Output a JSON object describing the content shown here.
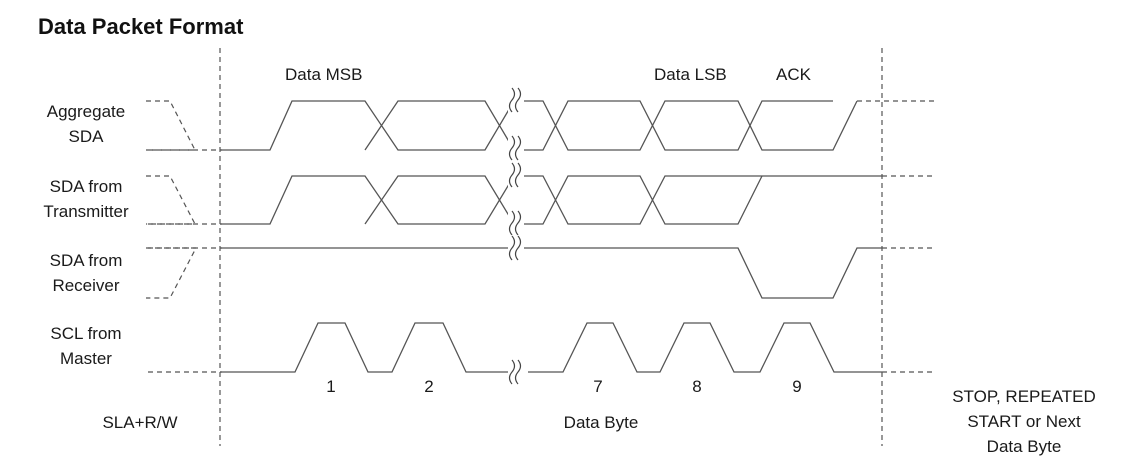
{
  "title": "Data Packet Format",
  "signals": [
    {
      "line1": "Aggregate",
      "line2": "SDA"
    },
    {
      "line1": "SDA from",
      "line2": "Transmitter"
    },
    {
      "line1": "SDA from",
      "line2": "Receiver"
    },
    {
      "line1": "SCL from",
      "line2": "Master"
    }
  ],
  "bit_labels": {
    "msb": "Data MSB",
    "lsb": "Data LSB",
    "ack": "ACK"
  },
  "clock_numbers": [
    "1",
    "2",
    "7",
    "8",
    "9"
  ],
  "sections": {
    "start": "SLA+R/W",
    "data": "Data Byte",
    "end": [
      "STOP, REPEATED",
      "START or Next",
      "Data Byte"
    ]
  }
}
